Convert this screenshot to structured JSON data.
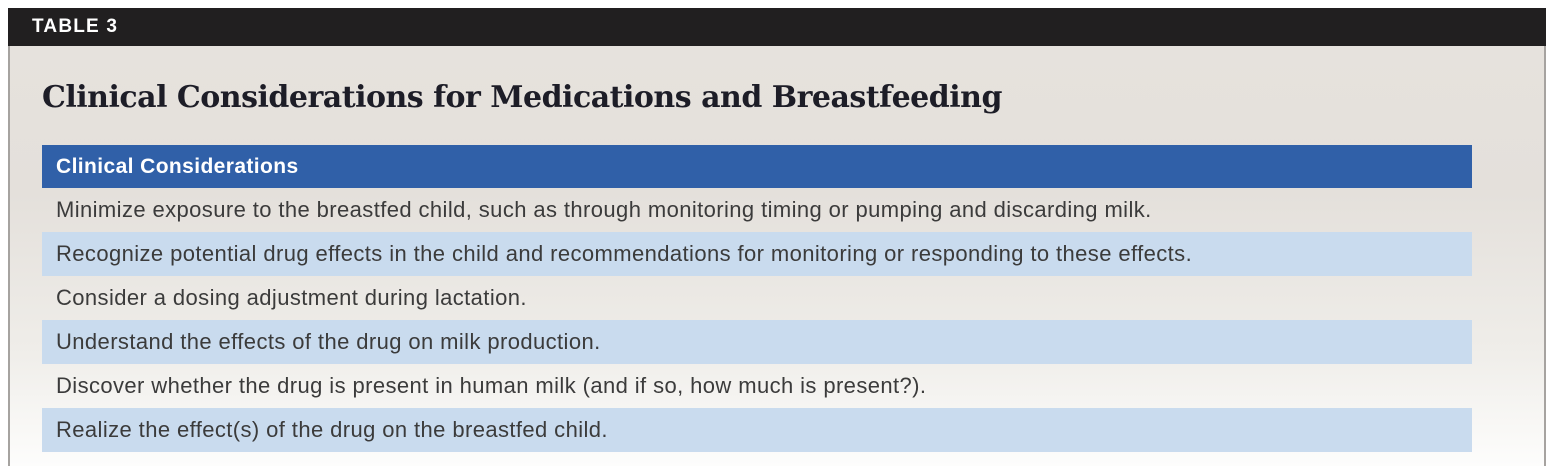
{
  "table_label": "TABLE 3",
  "title": "Clinical Considerations for Medications and Breastfeeding",
  "table": {
    "header": "Clinical Considerations",
    "rows": [
      "Minimize exposure to the breastfed child, such as through monitoring timing or pumping and discarding milk.",
      "Recognize potential drug effects in the child and recommendations for monitoring or responding to these effects.",
      "Consider a dosing adjustment during lactation.",
      "Understand the effects of the drug on milk production.",
      "Discover whether the drug is present in human milk (and if so, how much is present?).",
      "Realize the effect(s) of the drug on the breastfed child."
    ]
  },
  "colors": {
    "label_bar_bg": "#211f20",
    "label_bar_text": "#ffffff",
    "table_header_bg": "#3060a8",
    "table_header_text": "#ffffff",
    "row_alt_bg": "#c9dbee",
    "row_text": "#3b3b3b",
    "title_text": "#1d1d27",
    "panel_bg_top": "#e6e2dd",
    "panel_bg_bottom": "#fdfdfc",
    "panel_border": "#a6a3a0"
  }
}
